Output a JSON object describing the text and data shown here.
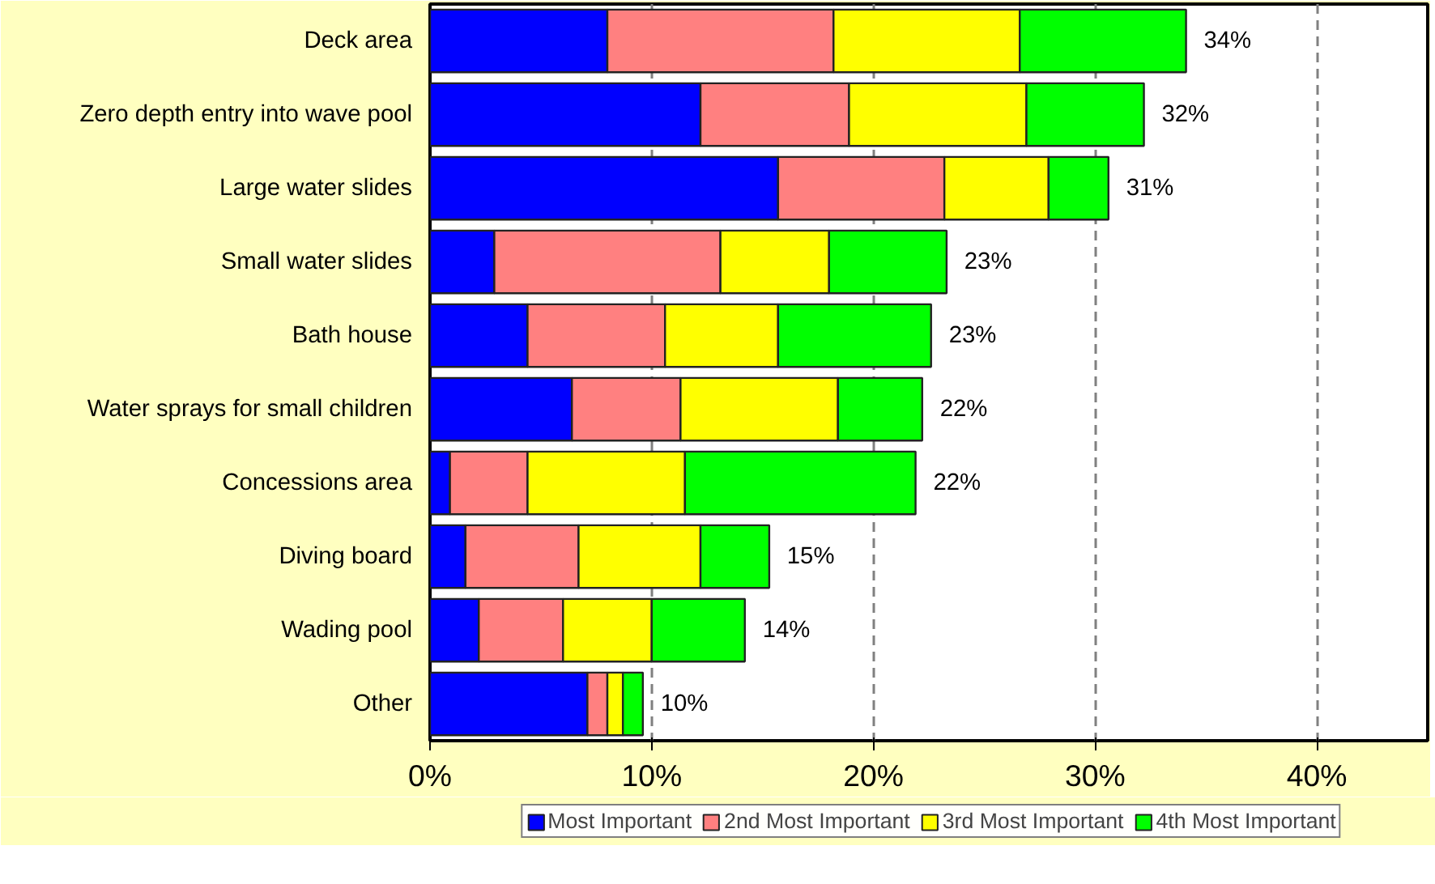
{
  "chart_data": {
    "type": "bar",
    "orientation": "horizontal",
    "stacked": true,
    "categories": [
      "Deck area",
      "Zero depth entry into wave pool",
      "Large water slides",
      "Small water slides",
      "Bath house",
      "Water sprays for small children",
      "Concessions area",
      "Diving board",
      "Wading pool",
      "Other"
    ],
    "series": [
      {
        "name": "Most Important",
        "color": "#0000ff",
        "values": [
          8.0,
          12.2,
          15.7,
          2.9,
          4.4,
          6.4,
          0.9,
          1.6,
          2.2,
          7.1
        ]
      },
      {
        "name": "2nd Most Important",
        "color": "#ff8080",
        "values": [
          10.2,
          6.7,
          7.5,
          10.2,
          6.2,
          4.9,
          3.5,
          5.1,
          3.8,
          0.9
        ]
      },
      {
        "name": "3rd Most Important",
        "color": "#ffff00",
        "values": [
          8.4,
          8.0,
          4.7,
          4.9,
          5.1,
          7.1,
          7.1,
          5.5,
          4.0,
          0.7
        ]
      },
      {
        "name": "4th Most Important",
        "color": "#00ff00",
        "values": [
          7.5,
          5.3,
          2.7,
          5.3,
          6.9,
          3.8,
          10.4,
          3.1,
          4.2,
          0.9
        ]
      }
    ],
    "totals": [
      "34%",
      "32%",
      "31%",
      "23%",
      "23%",
      "22%",
      "22%",
      "15%",
      "14%",
      "10%"
    ],
    "xlim": [
      0,
      45
    ],
    "xticks": [
      {
        "value": 0,
        "label": "0%"
      },
      {
        "value": 10,
        "label": "10%"
      },
      {
        "value": 20,
        "label": "20%"
      },
      {
        "value": 30,
        "label": "30%"
      },
      {
        "value": 40,
        "label": "40%"
      }
    ],
    "grid": "x",
    "legend": "bottom"
  }
}
